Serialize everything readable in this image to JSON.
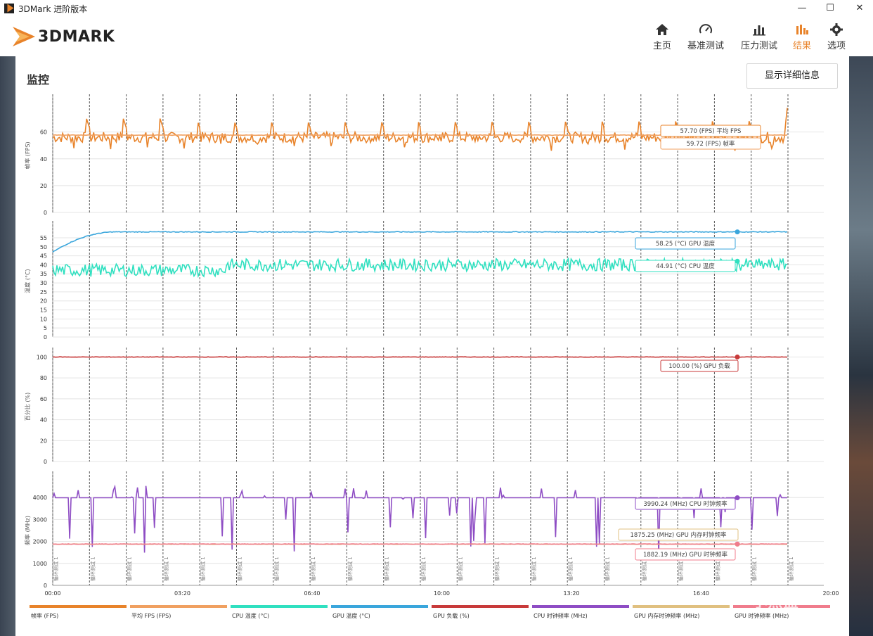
{
  "window": {
    "title": "3DMark 进阶版本",
    "minimize": "—",
    "maximize": "☐",
    "close": "✕"
  },
  "header": {
    "logo_text": "3DMARK",
    "nav": [
      {
        "label": "主页",
        "icon": "home-icon"
      },
      {
        "label": "基准测试",
        "icon": "gauge-icon"
      },
      {
        "label": "压力测试",
        "icon": "bar-chart-icon"
      },
      {
        "label": "结果",
        "icon": "results-icon",
        "active": true
      },
      {
        "label": "选项",
        "icon": "gear-icon"
      }
    ],
    "accent": "#e8832a"
  },
  "panel": {
    "title": "监控",
    "detail_button": "显示详细信息"
  },
  "chart_data": {
    "type": "line",
    "x_ticks": [
      "00:00",
      "03:20",
      "06:40",
      "10:00",
      "13:20",
      "16:40",
      "20:00"
    ],
    "marker_label": "循环测试 1",
    "subplots": [
      {
        "ylabel": "帧率 (FPS)",
        "yticks": [
          0,
          20,
          40,
          60
        ],
        "ylim": [
          0,
          85
        ],
        "series": [
          {
            "name": "帧率 (FPS)",
            "color": "#e8832a",
            "pattern": "sawtooth",
            "base": 56,
            "amp": 14
          },
          {
            "name": "平均 FPS (FPS)",
            "color": "#f0a060",
            "constant": 57.7
          }
        ],
        "annotations": [
          "57.70 (FPS) 平均 FPS",
          "59.72 (FPS) 帧率"
        ]
      },
      {
        "ylabel": "温度 (°C)",
        "yticks": [
          0,
          5,
          10,
          15,
          20,
          25,
          30,
          35,
          40,
          45,
          50,
          55
        ],
        "ylim": [
          0,
          62
        ],
        "series": [
          {
            "name": "GPU 温度 (°C)",
            "color": "#3aa6dc",
            "start": 47,
            "end": 58.25
          },
          {
            "name": "CPU 温度 (°C)",
            "color": "#30e0c0",
            "base": 40,
            "amp": 7
          }
        ],
        "annotations": [
          "58.25 (°C) GPU 温度",
          "44.91 (°C) CPU 温度"
        ]
      },
      {
        "ylabel": "百分比 (%)",
        "yticks": [
          0,
          20,
          40,
          60,
          80,
          100
        ],
        "ylim": [
          0,
          105
        ],
        "series": [
          {
            "name": "GPU 负载 (%)",
            "color": "#c83a3a",
            "constant": 100
          }
        ],
        "annotations": [
          "100.00 (%) GPU 负载"
        ]
      },
      {
        "ylabel": "频率 (MHz)",
        "yticks": [
          0,
          1000,
          2000,
          3000,
          4000
        ],
        "ylim": [
          0,
          5000
        ],
        "series": [
          {
            "name": "CPU 时钟频率 (MHz)",
            "color": "#8e4dc4",
            "base": 3990,
            "dips": true
          },
          {
            "name": "GPU 内存时钟频率 (MHz)",
            "color": "#e0c080",
            "constant": 1875.25
          },
          {
            "name": "GPU 时钟频率 (MHz)",
            "color": "#f07c8c",
            "constant": 1882.19
          }
        ],
        "annotations": [
          "3990.24 (MHz) CPU 时钟频率",
          "1875.25 (MHz) GPU 内存时钟频率",
          "1882.19 (MHz) GPU 时钟频率"
        ]
      }
    ]
  },
  "legend": [
    {
      "label": "帧率 (FPS)",
      "color": "#e8832a"
    },
    {
      "label": "平均 FPS (FPS)",
      "color": "#f0a060"
    },
    {
      "label": "CPU 温度 (°C)",
      "color": "#30e0c0"
    },
    {
      "label": "GPU 温度 (°C)",
      "color": "#3aa6dc"
    },
    {
      "label": "GPU 负载 (%)",
      "color": "#c83a3a"
    },
    {
      "label": "CPU 时钟频率 (MHz)",
      "color": "#8e4dc4"
    },
    {
      "label": "GPU 内存时钟频率 (MHz)",
      "color": "#e0c080"
    },
    {
      "label": "GPU 时钟频率 (MHz)",
      "color": "#f07c8c"
    }
  ],
  "watermark": "小黑盒"
}
